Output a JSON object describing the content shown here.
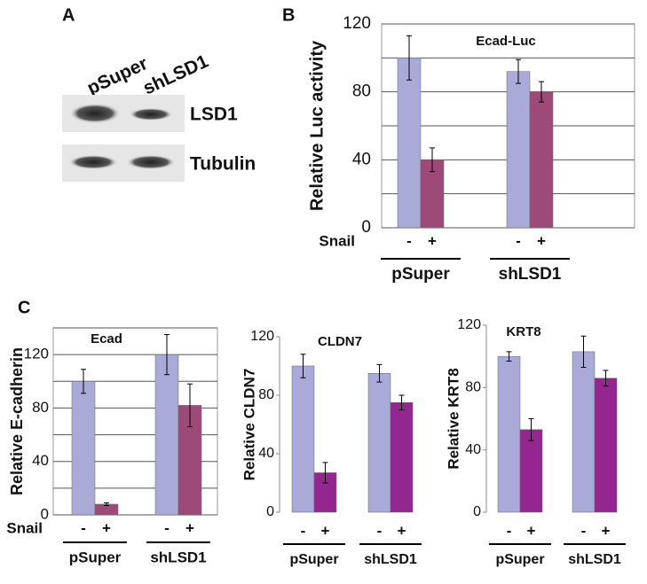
{
  "panel_labels": [
    "A",
    "B",
    "C"
  ],
  "blot": {
    "lanes": [
      "pSuper",
      "shLSD1"
    ],
    "rows": [
      "LSD1",
      "Tubulin"
    ]
  },
  "chart_data": [
    {
      "type": "bar",
      "title": "Ecad-Luc",
      "ylabel": "Relative Luc activity",
      "row_label": "Snail",
      "categories": [
        "pSuper",
        "shLSD1"
      ],
      "ylim": [
        0,
        120
      ],
      "yticks": [
        0,
        40,
        80,
        120
      ],
      "grid": true,
      "minor_grid": [
        20,
        60,
        100
      ],
      "series": [
        {
          "name": "-",
          "color": "#aaaad8",
          "values": [
            100,
            92
          ],
          "errors": [
            13,
            7
          ]
        },
        {
          "name": "+",
          "color": "#9e4a78",
          "values": [
            40,
            80
          ],
          "errors": [
            7,
            6
          ]
        }
      ]
    },
    {
      "type": "bar",
      "title": "Ecad",
      "ylabel": "Relative E-cadherin",
      "row_label": "Snail",
      "categories": [
        "pSuper",
        "shLSD1"
      ],
      "ylim": [
        0,
        140
      ],
      "yticks": [
        0,
        40,
        80,
        120
      ],
      "grid": true,
      "minor_grid": [
        20,
        60,
        100,
        140
      ],
      "series": [
        {
          "name": "-",
          "color": "#aaaad8",
          "values": [
            100,
            120
          ],
          "errors": [
            9,
            15
          ]
        },
        {
          "name": "+",
          "color": "#9e4a78",
          "values": [
            8,
            82
          ],
          "errors": [
            1,
            16
          ]
        }
      ]
    },
    {
      "type": "bar",
      "title": "CLDN7",
      "ylabel": "Relative CLDN7",
      "categories": [
        "pSuper",
        "shLSD1"
      ],
      "ylim": [
        0,
        120
      ],
      "yticks": [
        0,
        40,
        80,
        120
      ],
      "grid": false,
      "series": [
        {
          "name": "-",
          "color": "#aaaad8",
          "values": [
            100,
            95
          ],
          "errors": [
            8,
            6
          ]
        },
        {
          "name": "+",
          "color": "#93278f",
          "values": [
            27,
            75
          ],
          "errors": [
            7,
            5
          ]
        }
      ]
    },
    {
      "type": "bar",
      "title": "KRT8",
      "ylabel": "Relative KRT8",
      "categories": [
        "pSuper",
        "shLSD1"
      ],
      "ylim": [
        0,
        120
      ],
      "yticks": [
        0,
        40,
        80,
        120
      ],
      "grid": false,
      "series": [
        {
          "name": "-",
          "color": "#aaaad8",
          "values": [
            100,
            103
          ],
          "errors": [
            3,
            10
          ]
        },
        {
          "name": "+",
          "color": "#93278f",
          "values": [
            53,
            86
          ],
          "errors": [
            7,
            5
          ]
        }
      ]
    }
  ]
}
